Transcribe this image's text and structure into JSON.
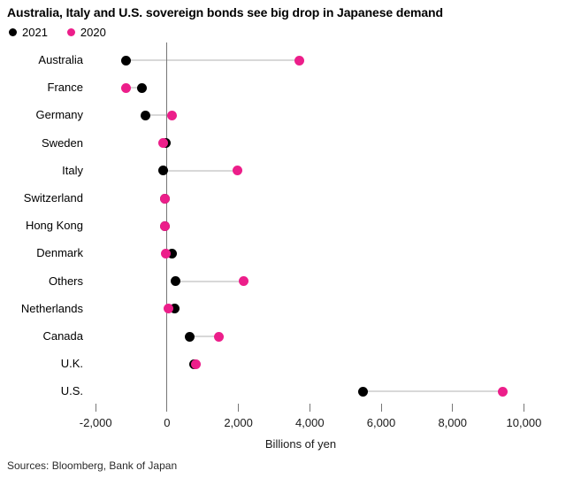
{
  "title": "Australia, Italy and U.S. sovereign bonds see big drop in Japanese demand",
  "legend": [
    {
      "label": "2021",
      "color": "#000000"
    },
    {
      "label": "2020",
      "color": "#ec1e8a"
    }
  ],
  "chart_data": {
    "type": "scatter",
    "subtype": "dumbbell-dot-plot",
    "orientation": "horizontal",
    "categories": [
      "Australia",
      "France",
      "Germany",
      "Sweden",
      "Italy",
      "Switzerland",
      "Hong Kong",
      "Denmark",
      "Others",
      "Netherlands",
      "Canada",
      "U.K.",
      "U.S."
    ],
    "series": [
      {
        "name": "2021",
        "color": "#000000",
        "values": [
          -1150,
          -700,
          -600,
          -30,
          -100,
          -50,
          -60,
          150,
          230,
          220,
          640,
          760,
          5500
        ]
      },
      {
        "name": "2020",
        "color": "#ec1e8a",
        "values": [
          3700,
          -1150,
          150,
          -120,
          1970,
          -50,
          -60,
          -40,
          2150,
          50,
          1450,
          810,
          9400
        ]
      }
    ],
    "x_ticks": [
      "-2,000",
      "0",
      "2,000",
      "4,000",
      "6,000",
      "8,000",
      "10,000"
    ],
    "x_tick_values": [
      -2000,
      0,
      2000,
      4000,
      6000,
      8000,
      10000
    ],
    "xlim": [
      -2600,
      11600
    ],
    "xlabel": "Billions of yen",
    "grid": "none",
    "legend_position": "top-left",
    "connector_color": "#d8d8d8",
    "axis_line_color": "#767676"
  },
  "source": "Sources: Bloomberg, Bank of Japan"
}
